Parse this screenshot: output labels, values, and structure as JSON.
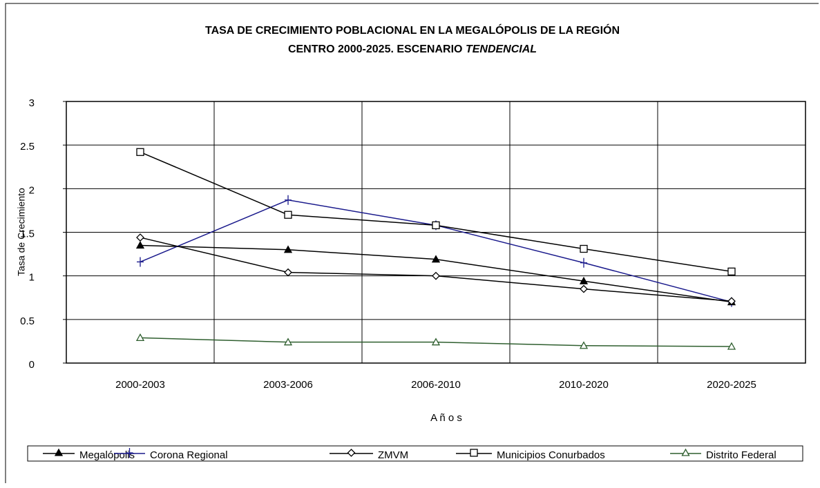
{
  "chart_data": {
    "type": "line",
    "title_lines": [
      "TASA DE CRECIMIENTO POBLACIONAL EN LA MEGALÓPOLIS DE LA REGIÓN",
      "CENTRO 2000-2025. ESCENARIO"
    ],
    "title_emphasis": "TENDENCIAL",
    "x_label": "A ñ o s",
    "y_label": "Tasa de Crecimiento",
    "categories": [
      "2000-2003",
      "2003-2006",
      "2006-2010",
      "2010-2020",
      "2020-2025"
    ],
    "ylim": [
      0,
      3
    ],
    "yticks": [
      0,
      0.5,
      1,
      1.5,
      2,
      2.5,
      3
    ],
    "grid": true,
    "legend": "bottom",
    "series": [
      {
        "name": "Megalópolis",
        "color": "#000000",
        "marker": "triangle-filled",
        "values": [
          1.35,
          1.3,
          1.19,
          0.94,
          0.7
        ]
      },
      {
        "name": "Corona Regional",
        "color": "#1a1a8c",
        "marker": "plus",
        "values": [
          1.16,
          1.87,
          1.58,
          1.15,
          0.7
        ]
      },
      {
        "name": "ZMVM",
        "color": "#000000",
        "marker": "diamond",
        "values": [
          1.44,
          1.04,
          1.0,
          0.85,
          0.71
        ]
      },
      {
        "name": "Municipios Conurbados",
        "color": "#000000",
        "marker": "square",
        "values": [
          2.42,
          1.7,
          1.58,
          1.31,
          1.05
        ]
      },
      {
        "name": "Distrito Federal",
        "color": "#2e5e2e",
        "marker": "triangle",
        "values": [
          0.29,
          0.24,
          0.24,
          0.2,
          0.19
        ]
      }
    ]
  }
}
